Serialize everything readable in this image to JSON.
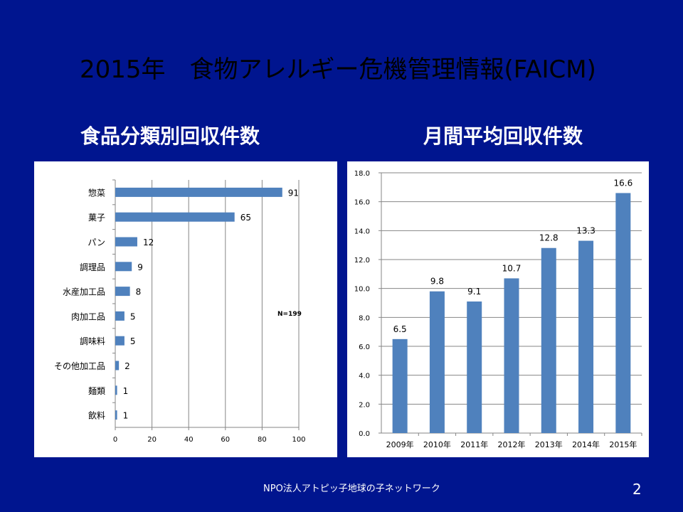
{
  "slide": {
    "title": "2015年　食物アレルギー危機管理情報(FAICM)",
    "left_heading": "食品分類別回収件数",
    "right_heading": "月間平均回収件数",
    "footer": "NPO法人アトピッ子地球の子ネットワーク",
    "page_number": "2",
    "colors": {
      "background": "#00158f",
      "bar": "#4f81bd",
      "panel": "#ffffff"
    }
  },
  "chart_data": [
    {
      "type": "bar",
      "orientation": "horizontal",
      "categories": [
        "惣菜",
        "菓子",
        "パン",
        "調理品",
        "水産加工品",
        "肉加工品",
        "調味料",
        "その他加工品",
        "麺類",
        "飲料"
      ],
      "values": [
        91,
        65,
        12,
        9,
        8,
        5,
        5,
        2,
        1,
        1
      ],
      "xlim": [
        0,
        100
      ],
      "xticks": [
        "0",
        "20",
        "40",
        "60",
        "80",
        "100"
      ],
      "annotation": "N=199",
      "grid": true
    },
    {
      "type": "bar",
      "orientation": "vertical",
      "categories": [
        "2009年",
        "2010年",
        "2011年",
        "2012年",
        "2013年",
        "2014年",
        "2015年"
      ],
      "values": [
        6.5,
        9.8,
        9.1,
        10.7,
        12.8,
        13.3,
        16.6
      ],
      "value_labels": [
        "6.5",
        "9.8",
        "9.1",
        "10.7",
        "12.8",
        "13.3",
        "16.6"
      ],
      "ylim": [
        0,
        18
      ],
      "yticks": [
        "0.0",
        "2.0",
        "4.0",
        "6.0",
        "8.0",
        "10.0",
        "12.0",
        "14.0",
        "16.0",
        "18.0"
      ],
      "grid": true
    }
  ]
}
